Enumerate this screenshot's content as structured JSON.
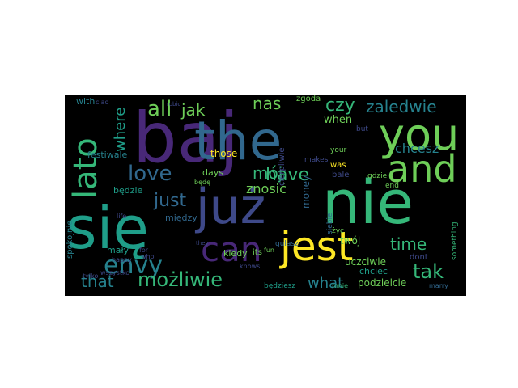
{
  "wordcloud": {
    "background": "#000000",
    "palette": {
      "purple": "#482878",
      "indigo": "#3e4989",
      "blue": "#31688e",
      "teal": "#26828e",
      "cyan": "#1f9e89",
      "green": "#35b779",
      "lime": "#6ece58",
      "yellow": "#fde725"
    },
    "words": [
      "baj",
      "the",
      "you",
      "nie",
      "już",
      "się",
      "jest",
      "can",
      "and",
      "lato",
      "all",
      "jak",
      "nas",
      "czy",
      "zaledwie",
      "where",
      "love",
      "mój",
      "have",
      "chcesz",
      "just",
      "envy",
      "tak",
      "that",
      "możliwie",
      "what",
      "time",
      "znosić",
      "money",
      "when",
      "those",
      "będzie",
      "uczciwie",
      "twój",
      "chciec",
      "podzielcie",
      "mały",
      "happy",
      "spokojnie",
      "its",
      "dont",
      "something",
      "with",
      "ciao",
      "zgoda",
      "festiwale",
      "gulasz",
      "kiedy",
      "mnie",
      "będziesz",
      "siebie",
      "bale",
      "gdzie",
      "end",
      "makes",
      "your",
      "was",
      "życ",
      "days",
      "będę",
      "między",
      "tylko",
      "wszystko",
      "life",
      "for",
      "who",
      "fun",
      "marry",
      "but",
      "robic",
      "cierpliwie",
      "knows",
      "they"
    ]
  }
}
